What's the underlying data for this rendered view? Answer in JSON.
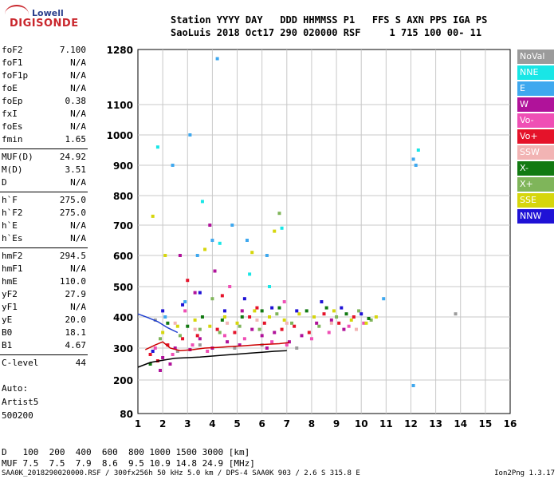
{
  "logo": {
    "top": "Lowell",
    "main": "DIGISONDE"
  },
  "header": {
    "line1": "Station YYYY DAY   DDD HHMMSS P1   FFS S AXN PPS IGA PS",
    "line2": "SaoLuis 2018 Oct17 290 020000 RSF     1 715 100 00- 11"
  },
  "parameters": [
    {
      "name": "foF2",
      "value": "7.100"
    },
    {
      "name": "foF1",
      "value": "N/A"
    },
    {
      "name": "foF1p",
      "value": "N/A"
    },
    {
      "name": "foE",
      "value": "N/A"
    },
    {
      "name": "foEp",
      "value": "0.38"
    },
    {
      "name": "fxI",
      "value": "N/A"
    },
    {
      "name": "foEs",
      "value": "N/A"
    },
    {
      "name": "fmin",
      "value": "1.65"
    },
    {
      "name": "MUF(D)",
      "value": "24.92"
    },
    {
      "name": "M(D)",
      "value": "3.51"
    },
    {
      "name": "D",
      "value": "N/A"
    },
    {
      "name": "h`F",
      "value": "275.0"
    },
    {
      "name": "h`F2",
      "value": "275.0"
    },
    {
      "name": "h`E",
      "value": "N/A"
    },
    {
      "name": "h`Es",
      "value": "N/A"
    },
    {
      "name": "hmF2",
      "value": "294.5"
    },
    {
      "name": "hmF1",
      "value": "N/A"
    },
    {
      "name": "hmE",
      "value": "110.0"
    },
    {
      "name": "yF2",
      "value": "27.9"
    },
    {
      "name": "yF1",
      "value": "N/A"
    },
    {
      "name": "yE",
      "value": "20.0"
    },
    {
      "name": "B0",
      "value": "18.1"
    },
    {
      "name": "B1",
      "value": "4.67"
    },
    {
      "name": "C-level",
      "value": "44"
    }
  ],
  "auto": {
    "line1": "Auto:",
    "line2": "Artist5",
    "line3": "500200"
  },
  "legend": [
    {
      "label": "NoVal",
      "color": "#9b9b9b"
    },
    {
      "label": "NNE",
      "color": "#19e6e6"
    },
    {
      "label": "E",
      "color": "#3ea8ef"
    },
    {
      "label": "W",
      "color": "#b0129a"
    },
    {
      "label": "Vo-",
      "color": "#ef4fb5"
    },
    {
      "label": "Vo+",
      "color": "#e5132a"
    },
    {
      "label": "SSW",
      "color": "#f2b4b4"
    },
    {
      "label": "X-",
      "color": "#127a12"
    },
    {
      "label": "X+",
      "color": "#7fb55a"
    },
    {
      "label": "SSE",
      "color": "#d6d60c"
    },
    {
      "label": "NNW",
      "color": "#1f12d6"
    }
  ],
  "footer": {
    "d_label": "D",
    "d_values": "   100  200  400  600  800 1000 1500 3000 [km]",
    "muf_label": "MUF",
    "muf_values": " 7.5  7.5  7.9  8.6  9.5 10.9 14.8 24.9 [MHz]",
    "bottom_left": "SAA0K_2018290020000.RSF / 300fx256h 50 kHz 5.0 km / DPS-4 SAA0K 903 / 2.6 S 315.8 E",
    "bottom_right": "Ion2Png 1.3.17"
  },
  "chart_data": {
    "type": "scatter",
    "title": "",
    "xlabel": "",
    "ylabel": "",
    "xlim": [
      1,
      16
    ],
    "ylim": [
      80,
      1280
    ],
    "x_ticks": [
      1,
      2,
      3,
      4,
      5,
      6,
      7,
      8,
      9,
      10,
      11,
      12,
      13,
      14,
      15,
      16
    ],
    "y_ticks": [
      80,
      200,
      300,
      400,
      500,
      600,
      700,
      800,
      900,
      1000,
      1100,
      1280
    ],
    "grid": true,
    "legend_position": "right",
    "series": [
      {
        "name": "W",
        "color": "#b0129a",
        "points": [
          [
            2.0,
            270
          ],
          [
            2.5,
            300
          ],
          [
            3.1,
            295
          ],
          [
            3.5,
            330
          ],
          [
            4.0,
            300
          ],
          [
            4.6,
            320
          ],
          [
            5.1,
            310
          ],
          [
            5.6,
            360
          ],
          [
            6.0,
            340
          ],
          [
            6.5,
            350
          ],
          [
            7.1,
            320
          ],
          [
            7.6,
            340
          ],
          [
            8.2,
            380
          ],
          [
            8.8,
            390
          ],
          [
            9.3,
            360
          ],
          [
            1.9,
            230
          ],
          [
            2.3,
            250
          ],
          [
            3.3,
            480
          ],
          [
            4.1,
            550
          ],
          [
            5.2,
            420
          ],
          [
            6.2,
            300
          ],
          [
            2.7,
            600
          ],
          [
            3.9,
            700
          ]
        ]
      },
      {
        "name": "Vo+",
        "color": "#e5132a",
        "points": [
          [
            1.8,
            260
          ],
          [
            2.2,
            310
          ],
          [
            2.8,
            330
          ],
          [
            3.4,
            340
          ],
          [
            4.2,
            360
          ],
          [
            4.9,
            350
          ],
          [
            5.5,
            400
          ],
          [
            6.1,
            380
          ],
          [
            6.8,
            360
          ],
          [
            7.3,
            370
          ],
          [
            7.9,
            350
          ],
          [
            8.5,
            410
          ],
          [
            9.1,
            380
          ],
          [
            9.7,
            400
          ],
          [
            3.0,
            520
          ],
          [
            4.4,
            470
          ],
          [
            5.8,
            430
          ],
          [
            1.5,
            280
          ]
        ]
      },
      {
        "name": "Vo-",
        "color": "#ef4fb5",
        "points": [
          [
            1.7,
            300
          ],
          [
            2.4,
            280
          ],
          [
            3.2,
            310
          ],
          [
            3.8,
            290
          ],
          [
            4.5,
            340
          ],
          [
            5.3,
            330
          ],
          [
            6.4,
            320
          ],
          [
            7.0,
            310
          ],
          [
            8.0,
            330
          ],
          [
            8.7,
            350
          ],
          [
            9.5,
            370
          ],
          [
            10.1,
            380
          ],
          [
            2.9,
            420
          ],
          [
            4.7,
            500
          ],
          [
            6.9,
            450
          ]
        ]
      },
      {
        "name": "SSE",
        "color": "#d6d60c",
        "points": [
          [
            2.0,
            350
          ],
          [
            2.6,
            370
          ],
          [
            3.3,
            390
          ],
          [
            3.9,
            370
          ],
          [
            4.5,
            400
          ],
          [
            5.0,
            380
          ],
          [
            5.7,
            420
          ],
          [
            6.3,
            400
          ],
          [
            6.9,
            390
          ],
          [
            7.5,
            410
          ],
          [
            8.1,
            400
          ],
          [
            8.9,
            420
          ],
          [
            9.6,
            390
          ],
          [
            10.2,
            380
          ],
          [
            10.6,
            400
          ],
          [
            3.7,
            620
          ],
          [
            5.6,
            610
          ],
          [
            6.5,
            680
          ],
          [
            1.6,
            730
          ],
          [
            2.1,
            600
          ]
        ]
      },
      {
        "name": "X+",
        "color": "#7fb55a",
        "points": [
          [
            1.9,
            330
          ],
          [
            2.7,
            340
          ],
          [
            3.5,
            360
          ],
          [
            4.3,
            350
          ],
          [
            5.1,
            370
          ],
          [
            5.9,
            360
          ],
          [
            6.6,
            410
          ],
          [
            7.2,
            380
          ],
          [
            8.3,
            370
          ],
          [
            9.0,
            400
          ],
          [
            9.9,
            420
          ],
          [
            10.4,
            390
          ],
          [
            4.0,
            460
          ],
          [
            6.7,
            740
          ]
        ]
      },
      {
        "name": "X-",
        "color": "#127a12",
        "points": [
          [
            2.2,
            380
          ],
          [
            3.0,
            370
          ],
          [
            3.6,
            400
          ],
          [
            4.4,
            390
          ],
          [
            5.2,
            400
          ],
          [
            6.0,
            420
          ],
          [
            6.7,
            430
          ],
          [
            7.8,
            420
          ],
          [
            8.6,
            430
          ],
          [
            9.4,
            410
          ],
          [
            10.3,
            395
          ],
          [
            1.5,
            250
          ]
        ]
      },
      {
        "name": "E",
        "color": "#3ea8ef",
        "points": [
          [
            2.1,
            400
          ],
          [
            2.9,
            450
          ],
          [
            3.4,
            600
          ],
          [
            4.0,
            650
          ],
          [
            4.8,
            700
          ],
          [
            5.4,
            650
          ],
          [
            6.2,
            600
          ],
          [
            3.1,
            1000
          ],
          [
            4.2,
            1250
          ],
          [
            2.4,
            900
          ],
          [
            12.1,
            920
          ],
          [
            12.2,
            900
          ],
          [
            12.1,
            180
          ],
          [
            10.9,
            460
          ]
        ]
      },
      {
        "name": "NNE",
        "color": "#19e6e6",
        "points": [
          [
            3.6,
            780
          ],
          [
            4.3,
            640
          ],
          [
            5.5,
            540
          ],
          [
            6.3,
            500
          ],
          [
            1.8,
            960
          ],
          [
            12.3,
            950
          ],
          [
            6.8,
            690
          ]
        ]
      },
      {
        "name": "NNW",
        "color": "#1f12d6",
        "points": [
          [
            2.0,
            420
          ],
          [
            2.8,
            440
          ],
          [
            3.5,
            480
          ],
          [
            4.5,
            420
          ],
          [
            5.3,
            460
          ],
          [
            6.4,
            430
          ],
          [
            7.4,
            420
          ],
          [
            8.4,
            450
          ],
          [
            9.2,
            430
          ],
          [
            10.0,
            410
          ],
          [
            1.6,
            290
          ]
        ]
      },
      {
        "name": "SSW",
        "color": "#f2b4b4",
        "points": [
          [
            2.5,
            380
          ],
          [
            3.3,
            360
          ],
          [
            4.6,
            380
          ],
          [
            5.8,
            390
          ],
          [
            7.0,
            380
          ],
          [
            8.8,
            380
          ],
          [
            9.8,
            360
          ]
        ]
      },
      {
        "name": "NoVal",
        "color": "#9b9b9b",
        "points": [
          [
            1.7,
            390
          ],
          [
            2.6,
            290
          ],
          [
            3.5,
            310
          ],
          [
            4.9,
            300
          ],
          [
            6.0,
            310
          ],
          [
            7.4,
            300
          ],
          [
            13.8,
            410
          ]
        ]
      }
    ],
    "traces": [
      {
        "name": "virtual-height-trace",
        "color": "#000000",
        "points": [
          [
            1.0,
            240
          ],
          [
            1.5,
            255
          ],
          [
            2.0,
            262
          ],
          [
            2.5,
            268
          ],
          [
            3.0,
            270
          ],
          [
            3.5,
            272
          ],
          [
            4.0,
            275
          ],
          [
            4.5,
            278
          ],
          [
            5.0,
            281
          ],
          [
            5.5,
            284
          ],
          [
            6.0,
            287
          ],
          [
            6.5,
            290
          ],
          [
            7.0,
            292
          ]
        ]
      },
      {
        "name": "o-trace-red",
        "color": "#cc0000",
        "points": [
          [
            1.3,
            295
          ],
          [
            1.7,
            310
          ],
          [
            2.0,
            320
          ],
          [
            2.3,
            300
          ],
          [
            2.7,
            292
          ],
          [
            3.2,
            295
          ],
          [
            3.7,
            300
          ],
          [
            4.2,
            302
          ],
          [
            4.7,
            305
          ],
          [
            5.2,
            307
          ],
          [
            5.7,
            310
          ],
          [
            6.2,
            312
          ],
          [
            6.7,
            314
          ],
          [
            7.1,
            318
          ]
        ]
      },
      {
        "name": "o-trace-blue",
        "color": "#1f3fd0",
        "points": [
          [
            1.0,
            410
          ],
          [
            1.4,
            398
          ],
          [
            1.8,
            385
          ],
          [
            2.2,
            365
          ],
          [
            2.6,
            350
          ]
        ]
      }
    ]
  }
}
